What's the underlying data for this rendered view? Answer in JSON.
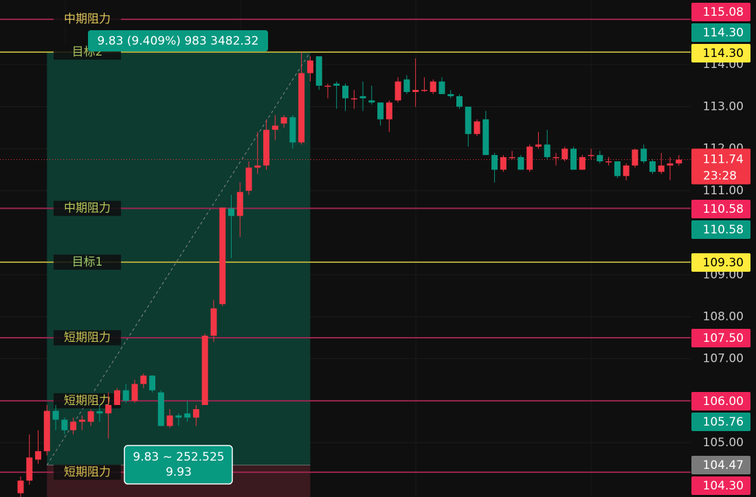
{
  "chart_data": {
    "type": "candlestick",
    "up_color": "#f23645",
    "down_color": "#089981",
    "ylim": [
      103.71,
      115.54
    ],
    "yticks": [
      {
        "value": 114,
        "label": "114.00"
      },
      {
        "value": 113,
        "label": "113.00"
      },
      {
        "value": 112,
        "label": "112.00"
      },
      {
        "value": 111,
        "label": "111.00"
      },
      {
        "value": 109,
        "label": "109.00"
      },
      {
        "value": 108,
        "label": "108.00"
      },
      {
        "value": 107,
        "label": "107.00"
      },
      {
        "value": 105,
        "label": "105.00"
      }
    ],
    "grid": true,
    "open": [
      103.8,
      104.1,
      104.6,
      104.8,
      105.76,
      105.55,
      105.3,
      105.5,
      105.5,
      105.75,
      105.7,
      105.9,
      106.25,
      106.0,
      106.4,
      106.6,
      106.2,
      105.4,
      105.65,
      105.7,
      105.6,
      105.9,
      107.55,
      108.3,
      110.58,
      110.4,
      111.0,
      111.55,
      111.6,
      112.45,
      112.6,
      112.75,
      112.15,
      113.8,
      114.2,
      113.5,
      113.55,
      113.5,
      113.2,
      113.25,
      113.15,
      113.1,
      112.7,
      113.15,
      113.65,
      113.35,
      113.4,
      113.35,
      113.6,
      113.3,
      113.25,
      113.0,
      112.35,
      112.7,
      111.85,
      111.5,
      111.8,
      111.8,
      111.5,
      112.05,
      112.1,
      111.8,
      111.75,
      112.0,
      111.5,
      111.85,
      111.85,
      111.7,
      111.7,
      111.35,
      111.6,
      112.0,
      111.7,
      111.45,
      111.6,
      111.65
    ],
    "high": [
      104.2,
      105.2,
      105.3,
      105.9,
      105.9,
      105.6,
      105.6,
      105.65,
      105.8,
      105.9,
      106.2,
      106.3,
      106.4,
      106.5,
      106.65,
      106.6,
      106.25,
      105.8,
      105.7,
      106.0,
      105.9,
      107.6,
      108.4,
      110.6,
      110.9,
      111.2,
      111.7,
      112.4,
      112.7,
      112.8,
      112.8,
      112.8,
      114.3,
      114.2,
      114.2,
      113.55,
      113.6,
      113.55,
      113.4,
      113.6,
      113.5,
      113.1,
      113.15,
      113.7,
      113.75,
      114.15,
      113.7,
      113.65,
      113.7,
      113.4,
      113.3,
      113.0,
      112.7,
      112.9,
      111.9,
      111.85,
      111.95,
      111.85,
      112.1,
      112.4,
      112.45,
      111.9,
      112.05,
      112.05,
      111.85,
      112.0,
      111.95,
      111.8,
      111.7,
      111.65,
      112.0,
      112.1,
      111.75,
      111.9,
      111.8,
      111.85
    ],
    "low": [
      103.7,
      104.0,
      104.5,
      104.7,
      105.3,
      105.2,
      105.2,
      105.3,
      105.4,
      105.5,
      105.1,
      105.9,
      105.95,
      105.95,
      106.3,
      106.2,
      105.4,
      105.35,
      105.4,
      105.5,
      105.4,
      105.9,
      107.4,
      108.25,
      109.4,
      109.9,
      110.9,
      111.4,
      111.5,
      112.2,
      112.5,
      112.0,
      112.1,
      113.6,
      113.4,
      113.2,
      112.95,
      112.9,
      112.95,
      112.9,
      113.05,
      112.55,
      112.4,
      113.1,
      113.3,
      113.0,
      113.35,
      113.3,
      113.3,
      113.2,
      112.95,
      112.05,
      112.3,
      111.85,
      111.2,
      111.45,
      111.75,
      111.5,
      111.45,
      112.0,
      111.75,
      111.6,
      111.7,
      111.5,
      111.5,
      111.75,
      111.65,
      111.6,
      111.3,
      111.25,
      111.55,
      111.65,
      111.4,
      111.4,
      111.25,
      111.6
    ],
    "close": [
      104.1,
      104.65,
      104.8,
      105.76,
      105.55,
      105.3,
      105.5,
      105.55,
      105.75,
      105.7,
      105.9,
      106.25,
      106.0,
      106.4,
      106.6,
      106.25,
      105.4,
      105.65,
      105.6,
      105.6,
      105.8,
      107.55,
      108.2,
      110.6,
      110.4,
      110.97,
      111.55,
      111.6,
      112.45,
      112.55,
      112.75,
      112.15,
      113.8,
      114.1,
      113.5,
      113.5,
      113.5,
      113.2,
      113.2,
      113.2,
      113.1,
      112.7,
      113.1,
      113.6,
      113.35,
      113.4,
      113.4,
      113.6,
      113.3,
      113.25,
      113.0,
      112.35,
      112.65,
      111.85,
      111.5,
      111.8,
      111.8,
      111.5,
      112.05,
      112.1,
      111.8,
      111.8,
      112.0,
      111.5,
      111.8,
      111.85,
      111.7,
      111.7,
      111.35,
      111.6,
      111.98,
      111.7,
      111.45,
      111.6,
      111.65,
      111.74
    ],
    "levels": [
      {
        "label": "中期阻力",
        "value": 115.08,
        "color": "#9c2650",
        "text_color": "#e0c65a"
      },
      {
        "label": "目标2",
        "value": 114.3,
        "color": "#b3ab3c",
        "text_color": "#a9c25e"
      },
      {
        "label": "中期阻力",
        "value": 110.58,
        "color": "#9c2650",
        "text_color": "#b9c95c"
      },
      {
        "label": "目标1",
        "value": 109.3,
        "color": "#b3ab3c",
        "text_color": "#9fc86a"
      },
      {
        "label": "短期阻力",
        "value": 107.5,
        "color": "#9c2650",
        "text_color": "#c9c355"
      },
      {
        "label": "短期阻力",
        "value": 106.0,
        "color": "#9c2650",
        "text_color": "#c9c355"
      },
      {
        "label": "短期阻力",
        "value": 104.3,
        "color": "#9c2650",
        "text_color": "#d8c152"
      }
    ],
    "current_price": {
      "value": 111.74,
      "label": "111.74",
      "countdown": "23:28",
      "color": "#f23645"
    },
    "price_labels": [
      {
        "value": 115.08,
        "label": "115.08",
        "color": "#f0245a",
        "text_color": "#ffffff"
      },
      {
        "value": 114.3,
        "label": "114.30",
        "color": "#089981",
        "text_color": "#ffffff"
      },
      {
        "value": 114.3,
        "label": "114.30",
        "color": "#ffeb3b",
        "text_color": "#000000"
      },
      {
        "value": 110.58,
        "label": "110.58",
        "color": "#f0245a",
        "text_color": "#ffffff"
      },
      {
        "value": 110.58,
        "label": "110.58",
        "color": "#089981",
        "text_color": "#ffffff"
      },
      {
        "value": 109.3,
        "label": "109.30",
        "color": "#ffeb3b",
        "text_color": "#000000"
      },
      {
        "value": 107.5,
        "label": "107.50",
        "color": "#f0245a",
        "text_color": "#ffffff"
      },
      {
        "value": 106.0,
        "label": "106.00",
        "color": "#f0245a",
        "text_color": "#ffffff"
      },
      {
        "value": 105.76,
        "label": "105.76",
        "color": "#089981",
        "text_color": "#ffffff"
      },
      {
        "value": 104.47,
        "label": "104.47",
        "color": "#7a7a7a",
        "text_color": "#ffffff"
      },
      {
        "value": 104.3,
        "label": "104.30",
        "color": "#f0245a",
        "text_color": "#ffffff"
      }
    ],
    "position": {
      "entry": 104.47,
      "target": 114.3,
      "target_text": "9.83 (9.409%) 983 3482.32",
      "entry_text": [
        "9.83 ~ 252.525",
        "9.93"
      ]
    }
  }
}
